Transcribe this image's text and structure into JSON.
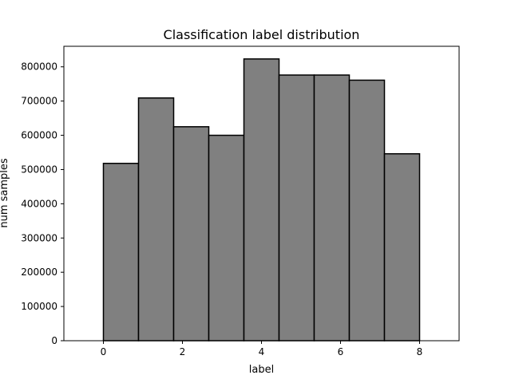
{
  "chart_data": {
    "type": "bar",
    "title": "Classification label distribution",
    "xlabel": "label",
    "ylabel": "num samples",
    "bin_edges": [
      0,
      0.888889,
      1.777778,
      2.666667,
      3.555556,
      4.444444,
      5.333333,
      6.222222,
      7.111111,
      8
    ],
    "values": [
      518000,
      709000,
      625000,
      600000,
      823000,
      776000,
      776000,
      761000,
      546000
    ],
    "xlim": [
      -1,
      9
    ],
    "ylim": [
      0,
      860000
    ],
    "xticks": [
      0,
      2,
      4,
      6,
      8
    ],
    "yticks": [
      0,
      100000,
      200000,
      300000,
      400000,
      500000,
      600000,
      700000,
      800000
    ],
    "bar_color": "#808080",
    "edge_color": "#000000",
    "grid": false,
    "legend": "none"
  }
}
